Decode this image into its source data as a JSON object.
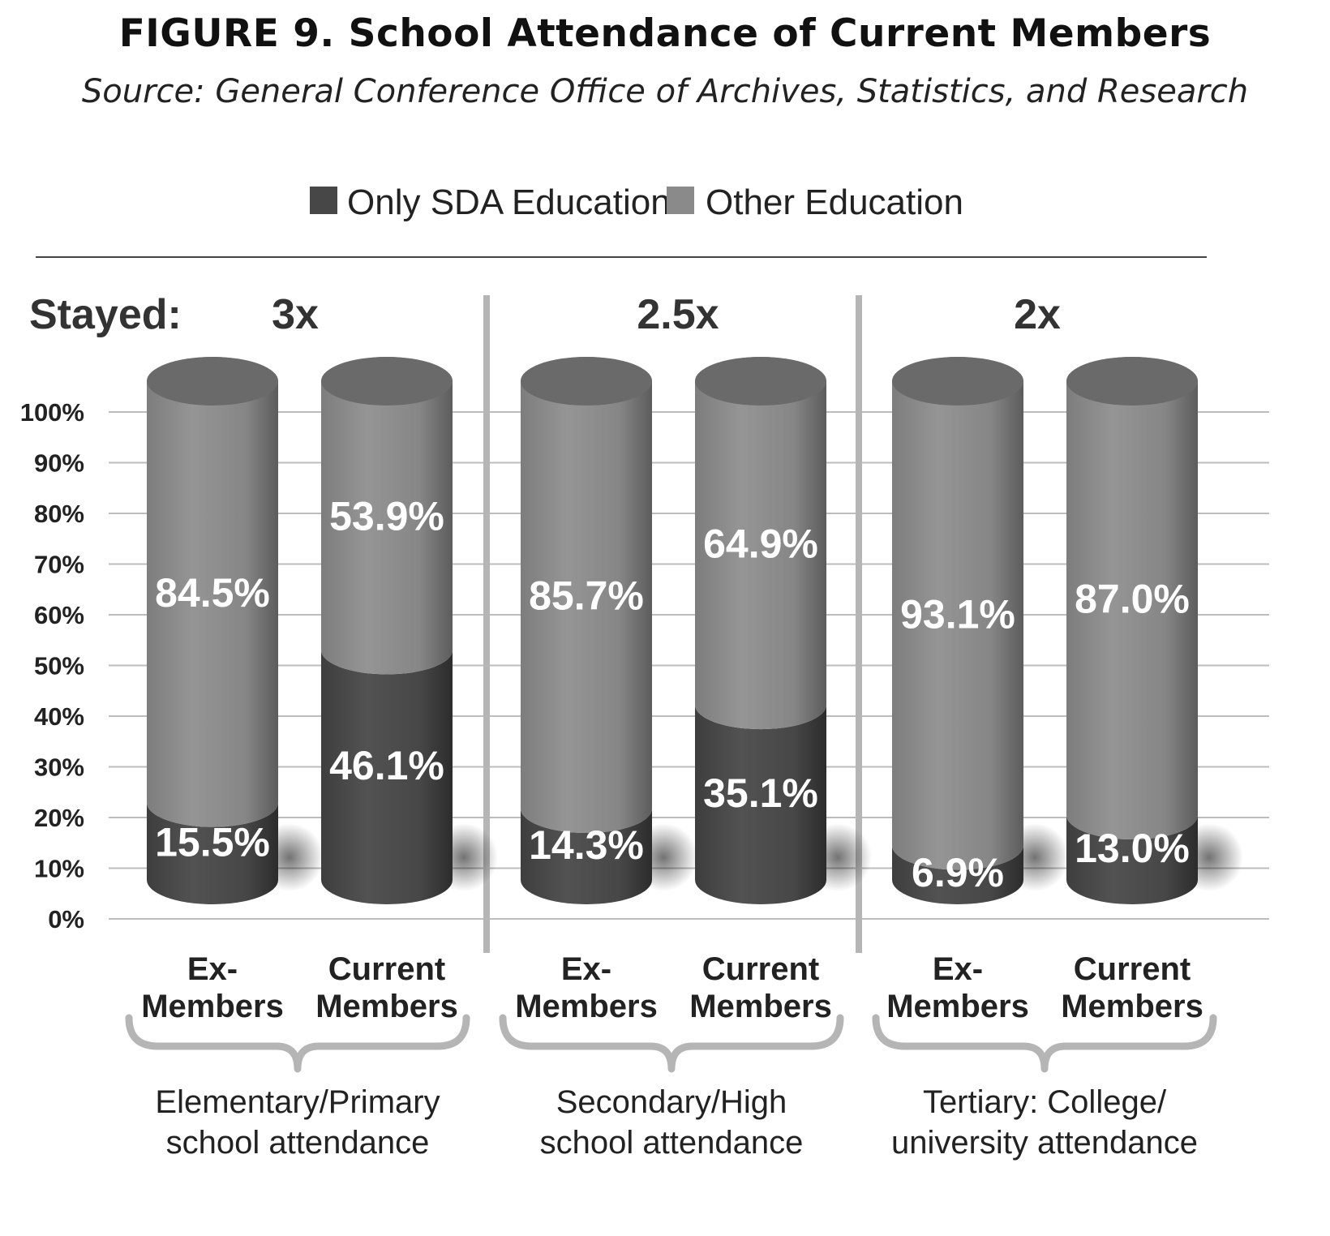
{
  "title": "FIGURE 9. School Attendance of Current Members",
  "subtitle": "Source: General Conference Office of Archives, Statistics, and Research",
  "colors": {
    "sda": "#474747",
    "other": "#8a8a8a",
    "grid": "#bdbdbd"
  },
  "chart_data": {
    "type": "bar",
    "stacked": true,
    "ylim": [
      0,
      100
    ],
    "yticks": [
      "0%",
      "10%",
      "20%",
      "30%",
      "40%",
      "50%",
      "60%",
      "70%",
      "80%",
      "90%",
      "100%"
    ],
    "legend": [
      "Only SDA Education",
      "Other Education"
    ],
    "legend_position": "top-center",
    "grid": true,
    "stayed_label": "Stayed:",
    "groups": [
      {
        "label_line1": "Elementary/Primary",
        "label_line2": "school attendance",
        "multiplier": "3x",
        "bars": [
          {
            "line1": "Ex-",
            "line2": "Members",
            "sda": 15.5,
            "other": 84.5,
            "sda_label": "15.5%",
            "other_label": "84.5%"
          },
          {
            "line1": "Current",
            "line2": "Members",
            "sda": 46.1,
            "other": 53.9,
            "sda_label": "46.1%",
            "other_label": "53.9%"
          }
        ]
      },
      {
        "label_line1": "Secondary/High",
        "label_line2": "school attendance",
        "multiplier": "2.5x",
        "bars": [
          {
            "line1": "Ex-",
            "line2": "Members",
            "sda": 14.3,
            "other": 85.7,
            "sda_label": "14.3%",
            "other_label": "85.7%"
          },
          {
            "line1": "Current",
            "line2": "Members",
            "sda": 35.1,
            "other": 64.9,
            "sda_label": "35.1%",
            "other_label": "64.9%"
          }
        ]
      },
      {
        "label_line1": "Tertiary: College/",
        "label_line2": "university attendance",
        "multiplier": "2x",
        "bars": [
          {
            "line1": "Ex-",
            "line2": "Members",
            "sda": 6.9,
            "other": 93.1,
            "sda_label": "6.9%",
            "other_label": "93.1%"
          },
          {
            "line1": "Current",
            "line2": "Members",
            "sda": 13.0,
            "other": 87.0,
            "sda_label": "13.0%",
            "other_label": "87.0%"
          }
        ]
      }
    ]
  }
}
